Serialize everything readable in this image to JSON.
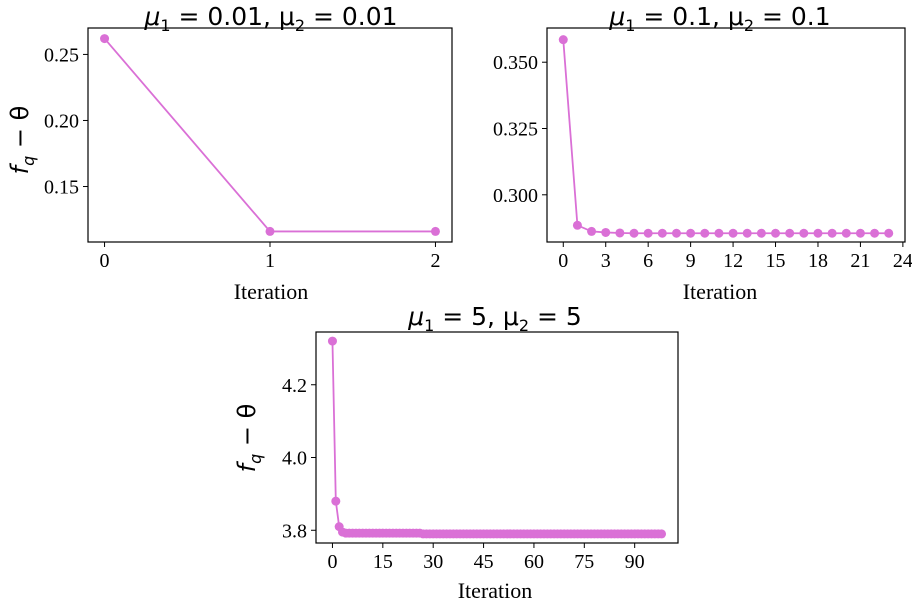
{
  "chart_data": [
    {
      "type": "line",
      "title": "μ1 = 0.01, μ2 = 0.01",
      "title_parts": {
        "a": "μ",
        "a_sub": "1",
        "b": " = 0.01, μ",
        "b_sub": "2",
        "c": " = 0.01"
      },
      "xlabel": "Iteration",
      "ylabel": "f_q − θ",
      "ylabel_parts": {
        "a": "f",
        "a_sub": "q",
        "b": " − θ"
      },
      "xlim": [
        -0.1,
        2.1
      ],
      "ylim": [
        0.108,
        0.27
      ],
      "xticks": [
        0,
        1,
        2
      ],
      "yticks": [
        0.15,
        0.2,
        0.25
      ],
      "ytick_labels": [
        "0.15",
        "0.20",
        "0.25"
      ],
      "color": "#da70d6",
      "series": [
        {
          "x": [
            0,
            1,
            2
          ],
          "y": [
            0.262,
            0.116,
            0.116
          ]
        }
      ]
    },
    {
      "type": "line",
      "title": "μ1 = 0.1, μ2 = 0.1",
      "title_parts": {
        "a": "μ",
        "a_sub": "1",
        "b": " = 0.1, μ",
        "b_sub": "2",
        "c": " = 0.1"
      },
      "xlabel": "Iteration",
      "ylabel": "",
      "xlim": [
        -1.15,
        24.15
      ],
      "ylim": [
        0.2822,
        0.3629
      ],
      "xticks": [
        0,
        3,
        6,
        9,
        12,
        15,
        18,
        21,
        24
      ],
      "yticks": [
        0.3,
        0.325,
        0.35
      ],
      "ytick_labels": [
        "0.300",
        "0.325",
        "0.350"
      ],
      "color": "#da70d6",
      "series": [
        {
          "x": [
            0,
            1,
            2,
            3,
            4,
            5,
            6,
            7,
            8,
            9,
            10,
            11,
            12,
            13,
            14,
            15,
            16,
            17,
            18,
            19,
            20,
            21,
            22,
            23
          ],
          "y": [
            0.3585,
            0.2885,
            0.2862,
            0.2858,
            0.2856,
            0.2855,
            0.2855,
            0.2855,
            0.2855,
            0.2855,
            0.2855,
            0.2855,
            0.2855,
            0.2855,
            0.2855,
            0.2855,
            0.2855,
            0.2855,
            0.2855,
            0.2855,
            0.2855,
            0.2855,
            0.2855,
            0.2855
          ]
        }
      ]
    },
    {
      "type": "line",
      "title": "μ1 = 5, μ2 = 5",
      "title_parts": {
        "a": "μ",
        "a_sub": "1",
        "b": " = 5, μ",
        "b_sub": "2",
        "c": " = 5"
      },
      "xlabel": "Iteration",
      "ylabel": "f_q − θ",
      "ylabel_parts": {
        "a": "f",
        "a_sub": "q",
        "b": " − θ"
      },
      "xlim": [
        -4.9,
        102.9
      ],
      "ylim": [
        3.765,
        4.345
      ],
      "xticks": [
        0,
        15,
        30,
        45,
        60,
        75,
        90
      ],
      "yticks": [
        3.8,
        4.0,
        4.2
      ],
      "ytick_labels": [
        "3.8",
        "4.0",
        "4.2"
      ],
      "color": "#da70d6",
      "series": [
        {
          "x": [
            0,
            1,
            2,
            3,
            4,
            5,
            6,
            7,
            8,
            9,
            10,
            11,
            12,
            13,
            14,
            15,
            16,
            17,
            18,
            19,
            20,
            21,
            22,
            23,
            24,
            25,
            26,
            27,
            28,
            29,
            30,
            31,
            32,
            33,
            34,
            35,
            36,
            37,
            38,
            39,
            40,
            41,
            42,
            43,
            44,
            45,
            46,
            47,
            48,
            49,
            50,
            51,
            52,
            53,
            54,
            55,
            56,
            57,
            58,
            59,
            60,
            61,
            62,
            63,
            64,
            65,
            66,
            67,
            68,
            69,
            70,
            71,
            72,
            73,
            74,
            75,
            76,
            77,
            78,
            79,
            80,
            81,
            82,
            83,
            84,
            85,
            86,
            87,
            88,
            89,
            90,
            91,
            92,
            93,
            94,
            95,
            96,
            97,
            98
          ],
          "y": [
            4.32,
            3.88,
            3.81,
            3.795,
            3.792,
            3.792,
            3.792,
            3.792,
            3.792,
            3.792,
            3.792,
            3.792,
            3.792,
            3.792,
            3.792,
            3.792,
            3.792,
            3.792,
            3.792,
            3.792,
            3.792,
            3.792,
            3.792,
            3.792,
            3.792,
            3.792,
            3.792,
            3.79,
            3.79,
            3.79,
            3.79,
            3.79,
            3.79,
            3.79,
            3.79,
            3.79,
            3.79,
            3.79,
            3.79,
            3.79,
            3.79,
            3.79,
            3.79,
            3.79,
            3.79,
            3.79,
            3.79,
            3.79,
            3.79,
            3.79,
            3.79,
            3.79,
            3.79,
            3.79,
            3.79,
            3.79,
            3.79,
            3.79,
            3.79,
            3.79,
            3.79,
            3.79,
            3.79,
            3.79,
            3.79,
            3.79,
            3.79,
            3.79,
            3.79,
            3.79,
            3.79,
            3.79,
            3.79,
            3.79,
            3.79,
            3.79,
            3.79,
            3.79,
            3.79,
            3.79,
            3.79,
            3.79,
            3.79,
            3.79,
            3.79,
            3.79,
            3.79,
            3.79,
            3.79,
            3.79,
            3.79,
            3.79,
            3.79,
            3.79,
            3.79,
            3.79,
            3.79,
            3.79,
            3.79
          ]
        }
      ]
    }
  ]
}
